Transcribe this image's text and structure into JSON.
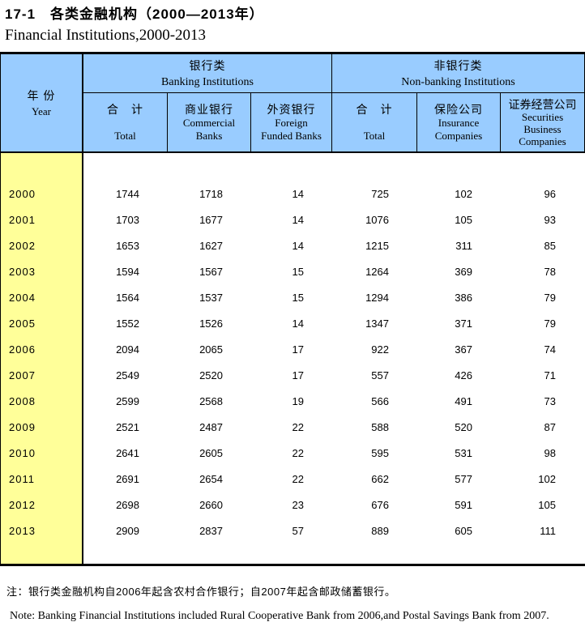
{
  "title": {
    "zh": "17-1　各类金融机构（2000—2013年）",
    "en": "Financial Institutions,2000-2013"
  },
  "table": {
    "year_header": {
      "zh": "年 份",
      "en": "Year"
    },
    "groups": {
      "banking": {
        "zh": "银行类",
        "en": "Banking Institutions"
      },
      "nonbanking": {
        "zh": "非银行类",
        "en": "Non-banking Institutions"
      }
    },
    "columns": [
      {
        "zh": "合　计",
        "en1": "Total",
        "en2": "",
        "en3": ""
      },
      {
        "zh": "商业银行",
        "en1": "Commercial",
        "en2": "Banks",
        "en3": ""
      },
      {
        "zh": "外资银行",
        "en1": "Foreign",
        "en2": "Funded Banks",
        "en3": ""
      },
      {
        "zh": "合　计",
        "en1": "Total",
        "en2": "",
        "en3": ""
      },
      {
        "zh": "保险公司",
        "en1": "Insurance",
        "en2": "Companies",
        "en3": ""
      },
      {
        "zh": "证券经营公司",
        "en1": "Securities",
        "en2": "Business",
        "en3": "Companies"
      }
    ],
    "rows": [
      {
        "year": "2000",
        "values": [
          "1744",
          "1718",
          "14",
          "725",
          "102",
          "96"
        ]
      },
      {
        "year": "2001",
        "values": [
          "1703",
          "1677",
          "14",
          "1076",
          "105",
          "93"
        ]
      },
      {
        "year": "2002",
        "values": [
          "1653",
          "1627",
          "14",
          "1215",
          "311",
          "85"
        ]
      },
      {
        "year": "2003",
        "values": [
          "1594",
          "1567",
          "15",
          "1264",
          "369",
          "78"
        ]
      },
      {
        "year": "2004",
        "values": [
          "1564",
          "1537",
          "15",
          "1294",
          "386",
          "79"
        ]
      },
      {
        "year": "2005",
        "values": [
          "1552",
          "1526",
          "14",
          "1347",
          "371",
          "79"
        ]
      },
      {
        "year": "2006",
        "values": [
          "2094",
          "2065",
          "17",
          "922",
          "367",
          "74"
        ]
      },
      {
        "year": "2007",
        "values": [
          "2549",
          "2520",
          "17",
          "557",
          "426",
          "71"
        ]
      },
      {
        "year": "2008",
        "values": [
          "2599",
          "2568",
          "19",
          "566",
          "491",
          "73"
        ]
      },
      {
        "year": "2009",
        "values": [
          "2521",
          "2487",
          "22",
          "588",
          "520",
          "87"
        ]
      },
      {
        "year": "2010",
        "values": [
          "2641",
          "2605",
          "22",
          "595",
          "531",
          "98"
        ]
      },
      {
        "year": "2011",
        "values": [
          "2691",
          "2654",
          "22",
          "662",
          "577",
          "102"
        ]
      },
      {
        "year": "2012",
        "values": [
          "2698",
          "2660",
          "23",
          "676",
          "591",
          "105"
        ]
      },
      {
        "year": "2013",
        "values": [
          "2909",
          "2837",
          "57",
          "889",
          "605",
          "111"
        ]
      }
    ]
  },
  "notes": {
    "zh": "注：银行类金融机构自2006年起含农村合作银行；自2007年起含邮政储蓄银行。",
    "en": "Note: Banking Financial Institutions included Rural Cooperative Bank from 2006,and Postal Savings Bank from 2007."
  },
  "colors": {
    "header_bg": "#99CCFF",
    "year_column_bg": "#FFFF99",
    "border": "#000000"
  }
}
